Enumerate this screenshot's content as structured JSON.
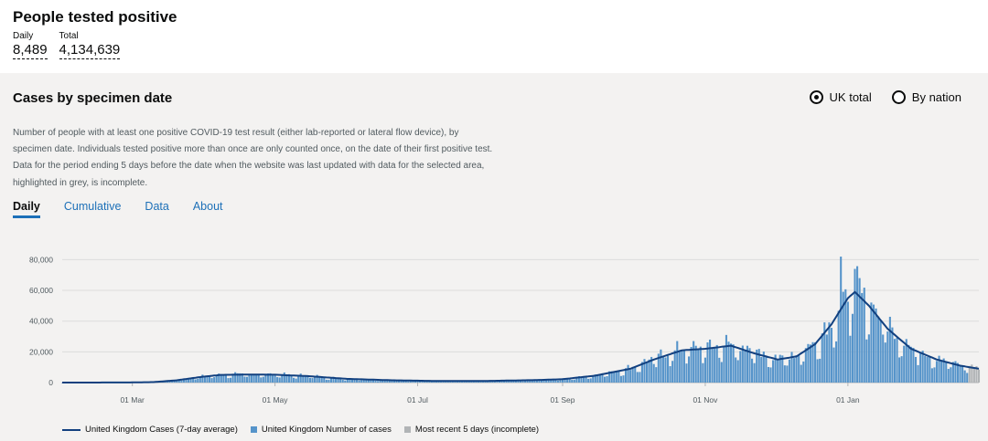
{
  "headline": {
    "title": "People tested positive",
    "metrics": [
      {
        "label": "Daily",
        "value": "8,489"
      },
      {
        "label": "Total",
        "value": "4,134,639"
      }
    ]
  },
  "card": {
    "title": "Cases by specimen date",
    "radios": [
      {
        "label": "UK total",
        "checked": true
      },
      {
        "label": "By nation",
        "checked": false
      }
    ],
    "description": "Number of people with at least one positive COVID-19 test result (either lab-reported or lateral flow device), by specimen date. Individuals tested positive more than once are only counted once, on the date of their first positive test. Data for the period ending 5 days before the date when the website was last updated with data for the selected area, highlighted in grey, is incomplete.",
    "tabs": [
      {
        "label": "Daily",
        "active": true
      },
      {
        "label": "Cumulative",
        "active": false
      },
      {
        "label": "Data",
        "active": false
      },
      {
        "label": "About",
        "active": false
      }
    ]
  },
  "chart_data": {
    "type": "bar",
    "ylim": [
      0,
      85000
    ],
    "y_ticks": [
      {
        "value": 0,
        "label": "0"
      },
      {
        "value": 20000,
        "label": "20,000"
      },
      {
        "value": 40000,
        "label": "40,000"
      },
      {
        "value": 60000,
        "label": "60,000"
      },
      {
        "value": 80000,
        "label": "80,000"
      }
    ],
    "x_ticks": [
      {
        "date": "2020-03-01",
        "label": "01 Mar"
      },
      {
        "date": "2020-05-01",
        "label": "01 May"
      },
      {
        "date": "2020-07-01",
        "label": "01 Jul"
      },
      {
        "date": "2020-09-01",
        "label": "01 Sep"
      },
      {
        "date": "2020-11-01",
        "label": "01 Nov"
      },
      {
        "date": "2021-01-01",
        "label": "01 Jan"
      }
    ],
    "x_range": [
      "2020-01-31",
      "2021-02-26"
    ],
    "grid": true,
    "legend_position": "bottom-left",
    "key_points": [
      {
        "date": "2020-01-31",
        "value": 0
      },
      {
        "date": "2020-02-28",
        "value": 50
      },
      {
        "date": "2020-03-10",
        "value": 300
      },
      {
        "date": "2020-03-20",
        "value": 1500
      },
      {
        "date": "2020-03-31",
        "value": 3800
      },
      {
        "date": "2020-04-08",
        "value": 5000
      },
      {
        "date": "2020-04-20",
        "value": 5200
      },
      {
        "date": "2020-05-01",
        "value": 5100
      },
      {
        "date": "2020-05-15",
        "value": 4200
      },
      {
        "date": "2020-06-01",
        "value": 2400
      },
      {
        "date": "2020-06-20",
        "value": 1500
      },
      {
        "date": "2020-07-10",
        "value": 1000
      },
      {
        "date": "2020-08-01",
        "value": 1100
      },
      {
        "date": "2020-08-20",
        "value": 1600
      },
      {
        "date": "2020-09-01",
        "value": 2200
      },
      {
        "date": "2020-09-15",
        "value": 4500
      },
      {
        "date": "2020-09-30",
        "value": 9000
      },
      {
        "date": "2020-10-10",
        "value": 15000
      },
      {
        "date": "2020-10-22",
        "value": 21000
      },
      {
        "date": "2020-11-01",
        "value": 22000
      },
      {
        "date": "2020-11-12",
        "value": 24000
      },
      {
        "date": "2020-11-22",
        "value": 19000
      },
      {
        "date": "2020-12-02",
        "value": 15000
      },
      {
        "date": "2020-12-10",
        "value": 17000
      },
      {
        "date": "2020-12-18",
        "value": 25000
      },
      {
        "date": "2020-12-25",
        "value": 38000
      },
      {
        "date": "2021-01-01",
        "value": 55000
      },
      {
        "date": "2021-01-04",
        "value": 59000
      },
      {
        "date": "2021-01-10",
        "value": 50000
      },
      {
        "date": "2021-01-18",
        "value": 35000
      },
      {
        "date": "2021-01-28",
        "value": 22000
      },
      {
        "date": "2021-02-08",
        "value": 15000
      },
      {
        "date": "2021-02-18",
        "value": 11000
      },
      {
        "date": "2021-02-26",
        "value": 9000
      }
    ],
    "bar_peaks": [
      {
        "date": "2020-10-27",
        "value": 27000
      },
      {
        "date": "2020-12-29",
        "value": 82000
      },
      {
        "date": "2021-01-04",
        "value": 74000
      },
      {
        "date": "2021-01-06",
        "value": 68000
      }
    ],
    "incomplete_days": 5,
    "series": [
      {
        "name": "United Kingdom Cases (7-day average)",
        "color": "#12407f"
      },
      {
        "name": "United Kingdom Number of cases",
        "color": "#5694ca"
      },
      {
        "name": "Most recent 5 days (incomplete)",
        "color": "#b1b4b6"
      }
    ]
  }
}
